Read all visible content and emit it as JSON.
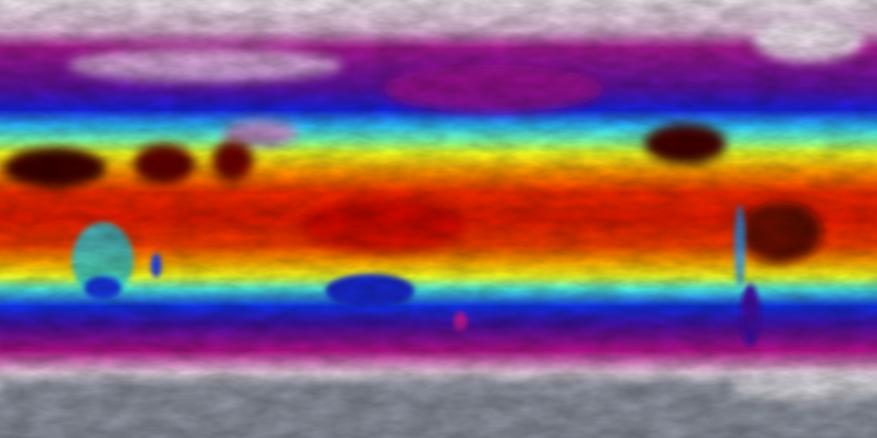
{
  "map": {
    "projection": "equirectangular",
    "colormap": [
      {
        "stop": 0.0,
        "color": "#ece4ea"
      },
      {
        "stop": 0.07,
        "color": "#d9b6d3"
      },
      {
        "stop": 0.11,
        "color": "#a3188f"
      },
      {
        "stop": 0.2,
        "color": "#5a10a0"
      },
      {
        "stop": 0.25,
        "color": "#1a20e0"
      },
      {
        "stop": 0.29,
        "color": "#30c8ff"
      },
      {
        "stop": 0.32,
        "color": "#7affb0"
      },
      {
        "stop": 0.35,
        "color": "#f0ff20"
      },
      {
        "stop": 0.39,
        "color": "#ff9a00"
      },
      {
        "stop": 0.44,
        "color": "#f02a00"
      },
      {
        "stop": 0.5,
        "color": "#e01a00"
      },
      {
        "stop": 0.56,
        "color": "#f03c00"
      },
      {
        "stop": 0.6,
        "color": "#ffaa00"
      },
      {
        "stop": 0.63,
        "color": "#f8ff20"
      },
      {
        "stop": 0.66,
        "color": "#50f0e0"
      },
      {
        "stop": 0.7,
        "color": "#1030e8"
      },
      {
        "stop": 0.74,
        "color": "#4010a0"
      },
      {
        "stop": 0.8,
        "color": "#b0108a"
      },
      {
        "stop": 0.85,
        "color": "#e8cce0"
      },
      {
        "stop": 0.88,
        "color": "#c8c8d0"
      },
      {
        "stop": 0.92,
        "color": "#939aa6"
      },
      {
        "stop": 1.0,
        "color": "#7e8590"
      }
    ],
    "hot_land_color": "#3a0000",
    "cold_land_color": "#1a20c0",
    "ice_color": "#f0e8f0"
  }
}
